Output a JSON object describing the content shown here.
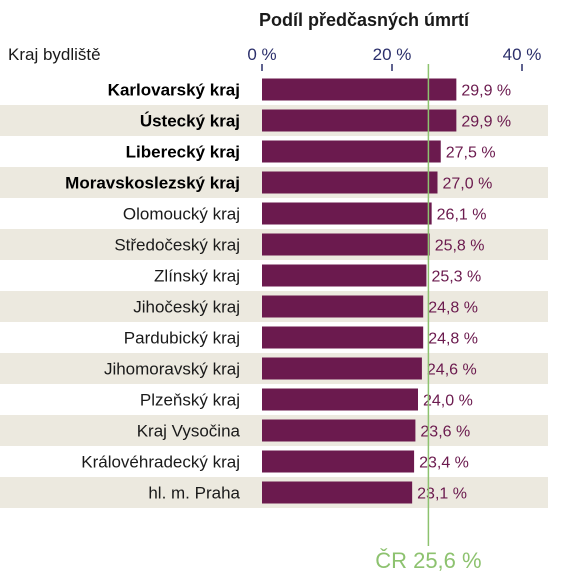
{
  "chart_data": {
    "type": "bar",
    "orientation": "horizontal",
    "title": "Podíl předčasných úmrtí",
    "category_axis_title": "Kraj bydliště",
    "categories": [
      "Karlovarský kraj",
      "Ústecký kraj",
      "Liberecký kraj",
      "Moravskoslezský kraj",
      "Olomoucký kraj",
      "Středočeský kraj",
      "Zlínský kraj",
      "Jihočeský kraj",
      "Pardubický kraj",
      "Jihomoravský kraj",
      "Plzeňský kraj",
      "Kraj Vysočina",
      "Královéhradecký kraj",
      "hl. m. Praha"
    ],
    "bold_categories": [
      "Karlovarský kraj",
      "Ústecký kraj",
      "Liberecký kraj",
      "Moravskoslezský kraj"
    ],
    "values": [
      29.9,
      29.9,
      27.5,
      27.0,
      26.1,
      25.8,
      25.3,
      24.8,
      24.8,
      24.6,
      24.0,
      23.6,
      23.4,
      23.1
    ],
    "value_labels": [
      "29,9 %",
      "29,9 %",
      "27,5 %",
      "27,0 %",
      "26,1 %",
      "25,8 %",
      "25,3 %",
      "24,8 %",
      "24,8 %",
      "24,6 %",
      "24,0 %",
      "23,6 %",
      "23,4 %",
      "23,1 %"
    ],
    "xlim": [
      0,
      40
    ],
    "xticks": [
      0,
      20,
      40
    ],
    "xtick_labels": [
      "0 %",
      "20 %",
      "40 %"
    ],
    "x_axis_position": "top",
    "reference_line": {
      "value": 25.6,
      "label": "ČR 25,6 %"
    },
    "grid": false,
    "legend": "none",
    "colors": {
      "bar": "#6b1a4e",
      "value_label": "#6b1a4e",
      "reference": "#8dc26f",
      "stripe": "#ece9df",
      "tick": "#2b2f6b"
    }
  }
}
